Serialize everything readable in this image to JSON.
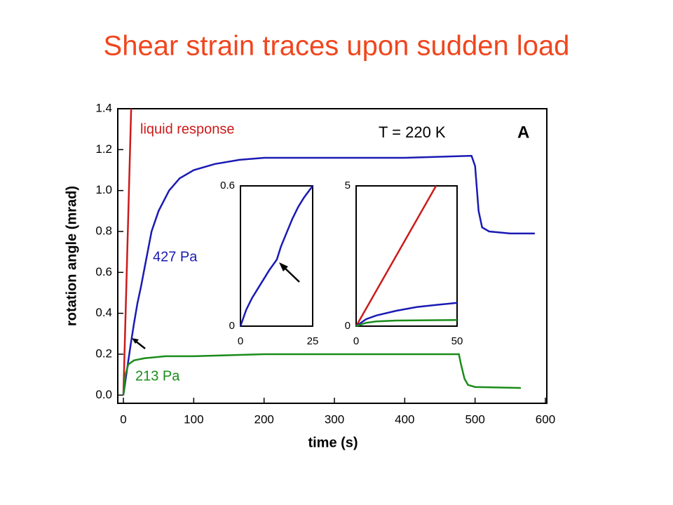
{
  "chart_data": [
    {
      "type": "line",
      "title": "Shear strain traces upon sudden load",
      "x_label": "time (s)",
      "y_label": "rotation angle (mrad)",
      "annotations": [
        "T = 220 K",
        "A"
      ],
      "xlim": [
        -8,
        602
      ],
      "ylim": [
        -0.04,
        1.4
      ],
      "xticks": [
        0,
        100,
        200,
        300,
        400,
        500,
        600
      ],
      "yticks": [
        {
          "value": 0,
          "label": "0.0"
        },
        0.2,
        0.4,
        0.6,
        0.8,
        {
          "value": 1,
          "label": "1.0"
        },
        1.2,
        1.4
      ],
      "series": [
        {
          "name": "liquid response",
          "color": "#cc1a1a",
          "x": [
            0,
            11
          ],
          "values": [
            0,
            1.4
          ]
        },
        {
          "name": "427 Pa",
          "color": "#1a1ab4",
          "x": [
            0,
            5,
            10,
            15,
            20,
            25,
            30,
            40,
            50,
            65,
            80,
            100,
            130,
            165,
            200,
            300,
            400,
            495,
            500,
            505,
            510,
            520,
            550,
            585
          ],
          "values": [
            0,
            0.12,
            0.24,
            0.35,
            0.45,
            0.53,
            0.62,
            0.8,
            0.9,
            1.0,
            1.06,
            1.1,
            1.13,
            1.15,
            1.16,
            1.16,
            1.16,
            1.17,
            1.12,
            0.9,
            0.82,
            0.8,
            0.79,
            0.79
          ]
        },
        {
          "name": "213 Pa",
          "color": "#1a8c1a",
          "x": [
            0,
            3,
            7,
            15,
            30,
            60,
            100,
            200,
            300,
            400,
            477,
            480,
            485,
            490,
            500,
            565
          ],
          "values": [
            0,
            0.1,
            0.15,
            0.17,
            0.18,
            0.19,
            0.19,
            0.2,
            0.2,
            0.2,
            0.2,
            0.15,
            0.08,
            0.05,
            0.04,
            0.035
          ]
        }
      ]
    },
    {
      "type": "line",
      "xlim": [
        0,
        25
      ],
      "ylim": [
        0,
        0.6
      ],
      "xticks": [
        0,
        25
      ],
      "yticks": [
        0,
        0.6
      ],
      "series": [
        {
          "color": "#1a1ab4",
          "x": [
            0,
            2,
            4,
            6,
            8,
            10,
            12.6,
            14,
            16,
            18,
            20,
            22,
            25
          ],
          "values": [
            0,
            0.07,
            0.12,
            0.16,
            0.2,
            0.24,
            0.285,
            0.34,
            0.4,
            0.46,
            0.51,
            0.55,
            0.6
          ]
        }
      ]
    },
    {
      "type": "line",
      "xlim": [
        0,
        50
      ],
      "ylim": [
        0,
        5
      ],
      "xticks": [
        0,
        50
      ],
      "yticks": [
        0,
        5
      ],
      "series": [
        {
          "color": "#cc1a1a",
          "x": [
            0,
            39.6
          ],
          "values": [
            0,
            5
          ]
        },
        {
          "color": "#1a1ab4",
          "x": [
            0,
            5,
            10,
            20,
            30,
            40,
            50
          ],
          "values": [
            0,
            0.25,
            0.38,
            0.55,
            0.68,
            0.76,
            0.83
          ]
        },
        {
          "color": "#1a8c1a",
          "x": [
            0,
            5,
            10,
            20,
            50
          ],
          "values": [
            0,
            0.12,
            0.17,
            0.2,
            0.22
          ]
        }
      ]
    }
  ]
}
